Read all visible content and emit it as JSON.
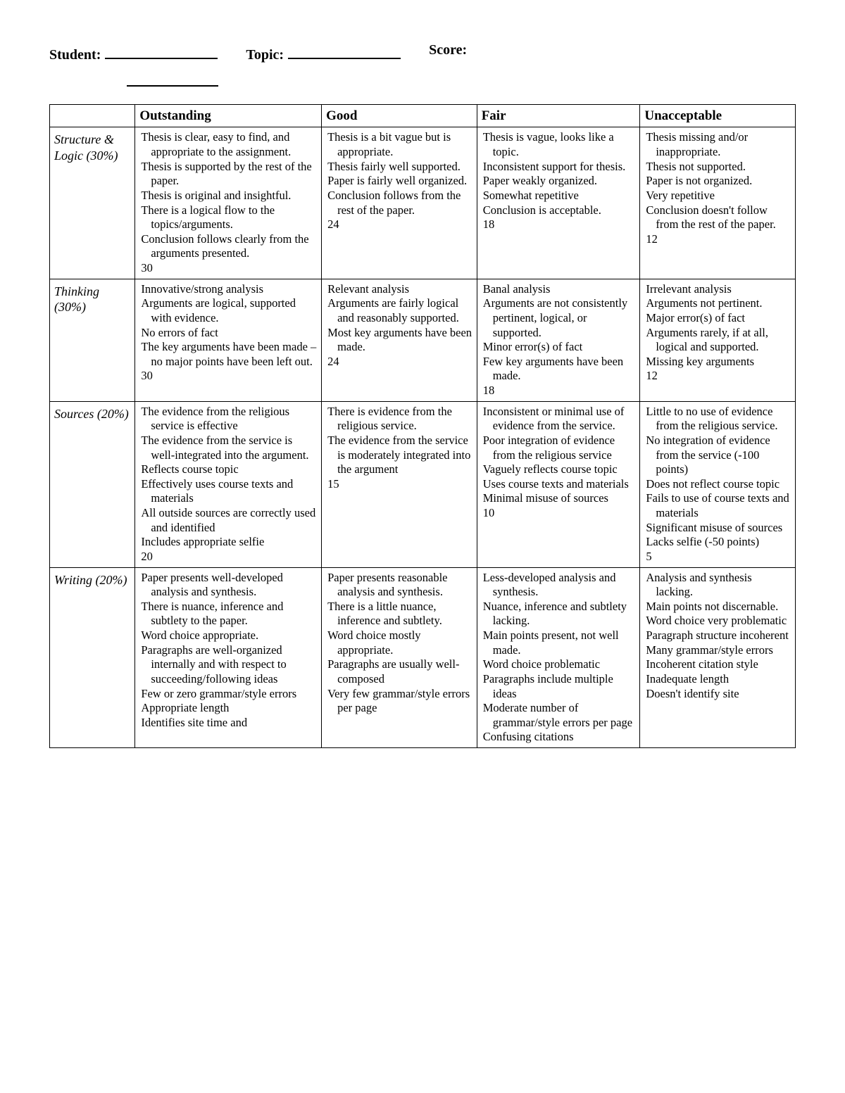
{
  "header": {
    "student_label": "Student:",
    "topic_label": "Topic:",
    "score_label": "Score:"
  },
  "columns": {
    "blank": "",
    "outstanding": "Outstanding",
    "good": "Good",
    "fair": "Fair",
    "unacceptable": "Unacceptable"
  },
  "rows": [
    {
      "category": "Structure & Logic (30%)",
      "outstanding": {
        "lines": [
          "Thesis is clear, easy to find, and appropriate to the assignment.",
          "Thesis is supported by the rest of the paper.",
          "Thesis is original and insightful.",
          "There is a logical flow to the topics/arguments.",
          "Conclusion follows clearly from the arguments presented."
        ],
        "points": "30"
      },
      "good": {
        "lines": [
          "Thesis is a bit vague but is appropriate.",
          "Thesis fairly well supported.",
          "Paper is fairly well organized.",
          "Conclusion follows from the rest of the paper."
        ],
        "points": "24"
      },
      "fair": {
        "lines": [
          "Thesis is vague, looks like a topic.",
          "Inconsistent support for thesis.",
          "Paper weakly organized.",
          "Somewhat repetitive",
          "Conclusion is acceptable."
        ],
        "points": "18"
      },
      "unacceptable": {
        "lines": [
          "Thesis missing and/or inappropriate.",
          "Thesis not supported.",
          "Paper is not organized.",
          "Very repetitive",
          "Conclusion doesn't follow from the rest of the paper."
        ],
        "points": "12"
      }
    },
    {
      "category": "Thinking (30%)",
      "outstanding": {
        "lines": [
          "Innovative/strong analysis",
          "Arguments are logical, supported with evidence.",
          "No errors of fact",
          "The key arguments have been made – no major points have been left out."
        ],
        "points": "30"
      },
      "good": {
        "lines": [
          "Relevant analysis",
          "Arguments are fairly logical and reasonably supported.",
          "Most key arguments have been made."
        ],
        "points": "24"
      },
      "fair": {
        "lines": [
          "Banal analysis",
          "Arguments are not consistently pertinent, logical, or supported.",
          "Minor error(s) of fact",
          "Few key arguments have been made."
        ],
        "points": "18"
      },
      "unacceptable": {
        "lines": [
          "Irrelevant analysis",
          "Arguments not pertinent.",
          "Major error(s) of fact",
          "Arguments rarely, if at all, logical and supported.",
          "Missing key arguments"
        ],
        "points": "12"
      }
    },
    {
      "category": "Sources (20%)",
      "outstanding": {
        "lines": [
          "The evidence from the religious service is effective",
          "The evidence from the service is well-integrated into the argument.",
          "Reflects course topic",
          "Effectively uses course texts and materials",
          "All outside sources are correctly used and identified",
          "Includes appropriate selfie"
        ],
        "points": "20"
      },
      "good": {
        "lines": [
          "There is evidence from the religious service.",
          "The evidence from the service is moderately integrated into the argument"
        ],
        "points": "15"
      },
      "fair": {
        "lines": [
          "Inconsistent or minimal use of evidence from the service.",
          "Poor integration of evidence from the religious service",
          "Vaguely reflects course topic",
          "Uses course texts and materials",
          "Minimal misuse of sources"
        ],
        "points": "10"
      },
      "unacceptable": {
        "lines": [
          "Little to no use of evidence from the religious service.",
          "No integration of evidence from the service (-100 points)",
          "Does not reflect course topic",
          "Fails to use of course texts and materials",
          "Significant misuse of sources",
          "Lacks selfie (-50 points)"
        ],
        "points": "5"
      }
    },
    {
      "category": "Writing (20%)",
      "outstanding": {
        "lines": [
          "Paper presents well-developed analysis and synthesis.",
          "There is nuance, inference and subtlety to the paper.",
          "Word choice appropriate.",
          "Paragraphs are well-organized internally and with respect to succeeding/following ideas",
          "Few or zero grammar/style errors",
          "Appropriate length",
          "Identifies site time and"
        ],
        "points": ""
      },
      "good": {
        "lines": [
          "Paper presents reasonable analysis and synthesis.",
          "There is a little nuance, inference and subtlety.",
          "Word choice mostly appropriate.",
          "Paragraphs are usually well-composed",
          "Very few grammar/style errors per page"
        ],
        "points": ""
      },
      "fair": {
        "lines": [
          "Less-developed analysis and synthesis.",
          "Nuance, inference and subtlety lacking.",
          "Main points present, not well made.",
          "Word choice problematic",
          "Paragraphs include multiple ideas",
          "Moderate number of grammar/style errors per page",
          "Confusing citations"
        ],
        "points": ""
      },
      "unacceptable": {
        "lines": [
          "Analysis and synthesis lacking.",
          "Main points not discernable.",
          "Word choice very problematic",
          "Paragraph structure incoherent",
          "Many grammar/style errors",
          "Incoherent citation style",
          "Inadequate length",
          "Doesn't identify site"
        ],
        "points": ""
      }
    }
  ],
  "style": {
    "background_color": "#ffffff",
    "text_color": "#000000",
    "border_color": "#000000",
    "header_fontsize": 20,
    "th_fontsize": 19,
    "body_fontsize": 16.5,
    "category_fontsize": 18,
    "font_family": "Georgia, Times New Roman, serif"
  }
}
